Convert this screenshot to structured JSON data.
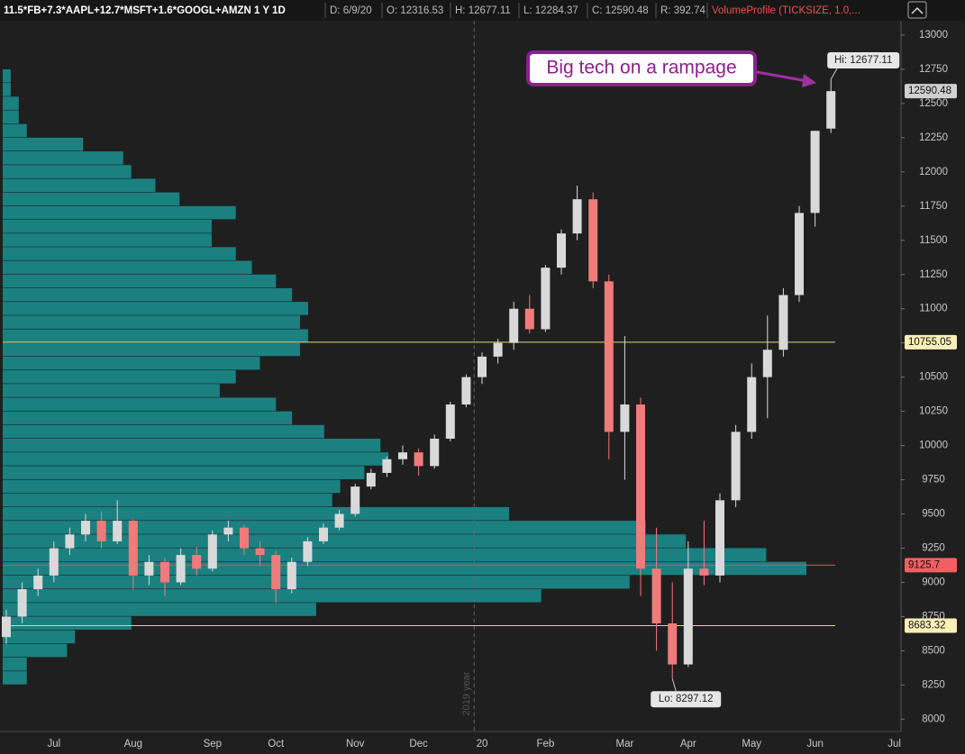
{
  "header": {
    "symbol": "11.5*FB+7.3*AAPL+12.7*MSFT+1.6*GOOGL+AMZN 1 Y 1D",
    "fields": [
      "D: 6/9/20",
      "O: 12316.53",
      "H: 12677.11",
      "L: 12284.37",
      "C: 12590.48",
      "R: 392.74"
    ],
    "study": "VolumeProfile (TICKSIZE, 1.0,..."
  },
  "chart_data": {
    "type": "candlestick",
    "categories": [
      null,
      null,
      null,
      "Jul",
      null,
      null,
      null,
      null,
      "Aug",
      null,
      null,
      null,
      null,
      "Sep",
      null,
      null,
      null,
      "Oct",
      null,
      null,
      null,
      null,
      "Nov",
      null,
      null,
      null,
      "Dec",
      null,
      null,
      null,
      "20",
      null,
      null,
      null,
      "Feb",
      null,
      null,
      null,
      null,
      "Mar",
      null,
      null,
      null,
      "Apr",
      null,
      null,
      null,
      "May",
      null,
      null,
      null,
      "Jun",
      null,
      null,
      null,
      null,
      "Jul"
    ],
    "open": [
      8600,
      8750,
      8950,
      9050,
      9250,
      9350,
      9450,
      9300,
      9450,
      9050,
      9150,
      9000,
      9200,
      9100,
      9350,
      9400,
      9250,
      9200,
      8950,
      9150,
      9300,
      9400,
      9500,
      9700,
      9800,
      9900,
      9950,
      9850,
      10050,
      10300,
      10500,
      10650,
      10750,
      11000,
      10850,
      11300,
      11550,
      11800,
      11200,
      10100,
      10300,
      9100,
      8700,
      8400,
      9100,
      9050,
      9600,
      10100,
      10500,
      10700,
      11100,
      11700,
      12316.53,
      null,
      null,
      null,
      null
    ],
    "high": [
      8800,
      9000,
      9100,
      9300,
      9400,
      9500,
      9520,
      9600,
      9460,
      9200,
      9180,
      9250,
      9260,
      9380,
      9450,
      9420,
      9300,
      9230,
      9180,
      9330,
      9430,
      9530,
      9720,
      9830,
      9920,
      10000,
      9980,
      10080,
      10320,
      10520,
      10680,
      10780,
      11050,
      11100,
      11320,
      11580,
      11900,
      11850,
      11250,
      10800,
      10350,
      9400,
      9000,
      9300,
      9450,
      9650,
      10150,
      10600,
      10950,
      11150,
      11750,
      12300,
      12677.11,
      null,
      null,
      null,
      null
    ],
    "low": [
      8550,
      8700,
      8900,
      9000,
      9200,
      9300,
      9250,
      9280,
      8950,
      8980,
      8900,
      8980,
      9050,
      9080,
      9300,
      9200,
      9120,
      8850,
      8920,
      9120,
      9280,
      9380,
      9480,
      9680,
      9770,
      9860,
      9780,
      9830,
      10030,
      10280,
      10450,
      10600,
      10700,
      10820,
      10830,
      11250,
      11500,
      11150,
      9900,
      9750,
      8900,
      8500,
      8297.12,
      8380,
      8980,
      9000,
      9550,
      10050,
      10200,
      10650,
      11050,
      11600,
      12284.37,
      null,
      null,
      null,
      null
    ],
    "close": [
      8750,
      8950,
      9050,
      9250,
      9350,
      9450,
      9300,
      9450,
      9050,
      9150,
      9000,
      9200,
      9100,
      9350,
      9400,
      9250,
      9200,
      8950,
      9150,
      9300,
      9400,
      9500,
      9700,
      9800,
      9900,
      9950,
      9850,
      10050,
      10300,
      10500,
      10650,
      10750,
      11000,
      10850,
      11300,
      11550,
      11800,
      11200,
      10100,
      10300,
      9100,
      8700,
      8400,
      9100,
      9050,
      9600,
      10100,
      10500,
      10700,
      11100,
      11700,
      12300,
      12590.48,
      null,
      null,
      null,
      null
    ],
    "up_color": "#d9d9d9",
    "down_color": "#f07b7b",
    "ylim": [
      7910,
      13105
    ],
    "yticks": [
      8000,
      8250,
      8500,
      8750,
      9000,
      9250,
      9500,
      9750,
      10000,
      10250,
      10500,
      10750,
      11000,
      11250,
      11500,
      11750,
      12000,
      12250,
      12500,
      12750,
      13000
    ],
    "volume_profile": {
      "color": "#1b8b8b",
      "levels": [
        12700,
        12600,
        12500,
        12400,
        12300,
        12200,
        12100,
        12000,
        11900,
        11800,
        11700,
        11600,
        11500,
        11400,
        11300,
        11200,
        11100,
        11000,
        10900,
        10800,
        10700,
        10600,
        10500,
        10400,
        10300,
        10200,
        10100,
        10000,
        9900,
        9800,
        9700,
        9600,
        9500,
        9400,
        9300,
        9200,
        9100,
        9000,
        8900,
        8800,
        8700,
        8600,
        8500,
        8400,
        8300
      ],
      "values": [
        1,
        1,
        2,
        2,
        3,
        10,
        15,
        16,
        19,
        22,
        29,
        26,
        26,
        29,
        31,
        34,
        36,
        38,
        37,
        38,
        37,
        32,
        29,
        27,
        34,
        36,
        40,
        47,
        48,
        45,
        42,
        41,
        63,
        80,
        85,
        95,
        100,
        78,
        67,
        39,
        16,
        9,
        8,
        3,
        3
      ]
    },
    "price_lines": [
      {
        "value": 12590.48,
        "color": "#d0d0d0",
        "label_fill": "#d0d0d0",
        "line": false
      },
      {
        "value": 10755.05,
        "color": "#e8d27a",
        "label_fill": "#fbefb8",
        "line": true
      },
      {
        "value": 9125.7,
        "color": "#e05050",
        "label_fill": "#f06060",
        "line": true
      },
      {
        "value": 8683.32,
        "color": "#e8d27a",
        "label_fill": "#fbefb8",
        "line": true
      }
    ],
    "hi_label": "Hi: 12677.11",
    "lo_label": "Lo: 8297.12",
    "year_marker": "2019 year",
    "annotation": "Big tech on a rampage"
  }
}
